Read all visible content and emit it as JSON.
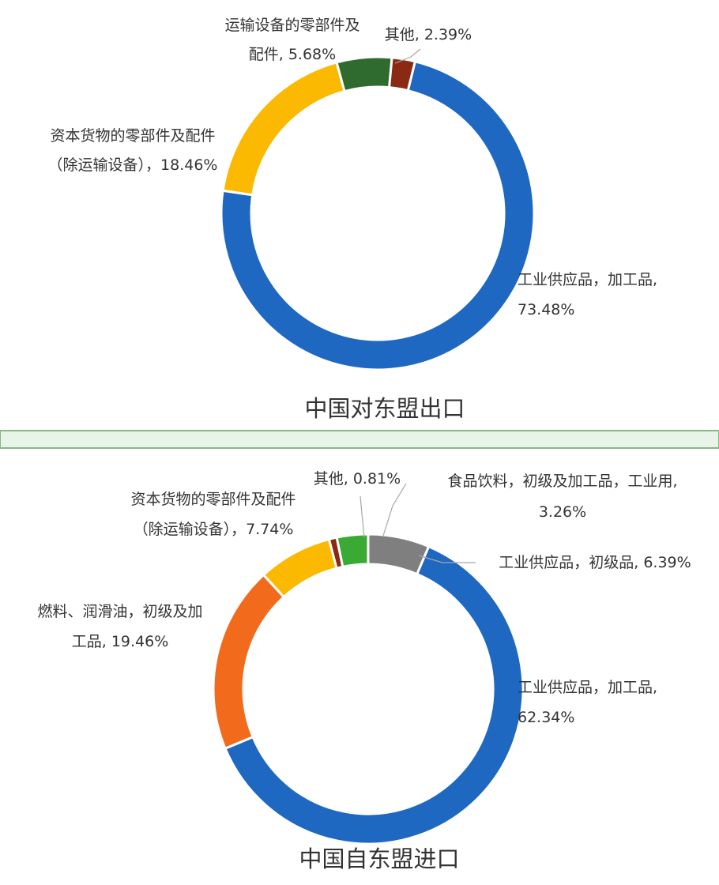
{
  "chart_data": [
    {
      "type": "pie",
      "title": "中国对东盟出口",
      "slices": [
        {
          "label": "工业供应品，加工品",
          "value": 73.48,
          "display": "73.48%",
          "color": "#1f68c1"
        },
        {
          "label": "资本货物的零部件及配件（除运输设备）",
          "value": 18.46,
          "display": "18.46%",
          "color": "#fbb901"
        },
        {
          "label": "运输设备的零部件及配件",
          "value": 5.68,
          "display": "5.68%",
          "color": "#2f6b2f"
        },
        {
          "label": "其他",
          "value": 2.39,
          "display": "2.39%",
          "color": "#8b2a14"
        }
      ],
      "labels": [
        {
          "lines": [
            "工业供应品，加工品,",
            "73.48%"
          ]
        },
        {
          "lines": [
            "资本货物的零部件及配件",
            "（除运输设备），18.46%"
          ]
        },
        {
          "lines": [
            "运输设备的零部件及",
            "配件, 5.68%"
          ]
        },
        {
          "lines": [
            "其他, 2.39%"
          ]
        }
      ]
    },
    {
      "type": "pie",
      "title": "中国自东盟进口",
      "slices": [
        {
          "label": "工业供应品，加工品",
          "value": 62.34,
          "display": "62.34%",
          "color": "#1f68c1"
        },
        {
          "label": "燃料、润滑油，初级及加工品",
          "value": 19.46,
          "display": "19.46%",
          "color": "#f26b1d"
        },
        {
          "label": "资本货物的零部件及配件（除运输设备）",
          "value": 7.74,
          "display": "7.74%",
          "color": "#fbb901"
        },
        {
          "label": "其他",
          "value": 0.81,
          "display": "0.81%",
          "color": "#8b2a14"
        },
        {
          "label": "食品饮料，初级及加工品，工业用",
          "value": 3.26,
          "display": "3.26%",
          "color": "#3aaa35"
        },
        {
          "label": "工业供应品，初级品",
          "value": 6.39,
          "display": "6.39%",
          "color": "#7f7f7f"
        }
      ],
      "labels": [
        {
          "lines": [
            "工业供应品，加工品,",
            "62.34%"
          ]
        },
        {
          "lines": [
            "燃料、润滑油，初级及加",
            "工品, 19.46%"
          ]
        },
        {
          "lines": [
            "资本货物的零部件及配件",
            "（除运输设备），7.74%"
          ]
        },
        {
          "lines": [
            "其他, 0.81%"
          ]
        },
        {
          "lines": [
            "食品饮料，初级及加工品，工业用,",
            "3.26%"
          ]
        },
        {
          "lines": [
            "工业供应品，初级品, 6.39%"
          ]
        }
      ]
    }
  ],
  "colors": {
    "divider_fill": "#e8f4e8",
    "divider_border": "#86b886"
  }
}
